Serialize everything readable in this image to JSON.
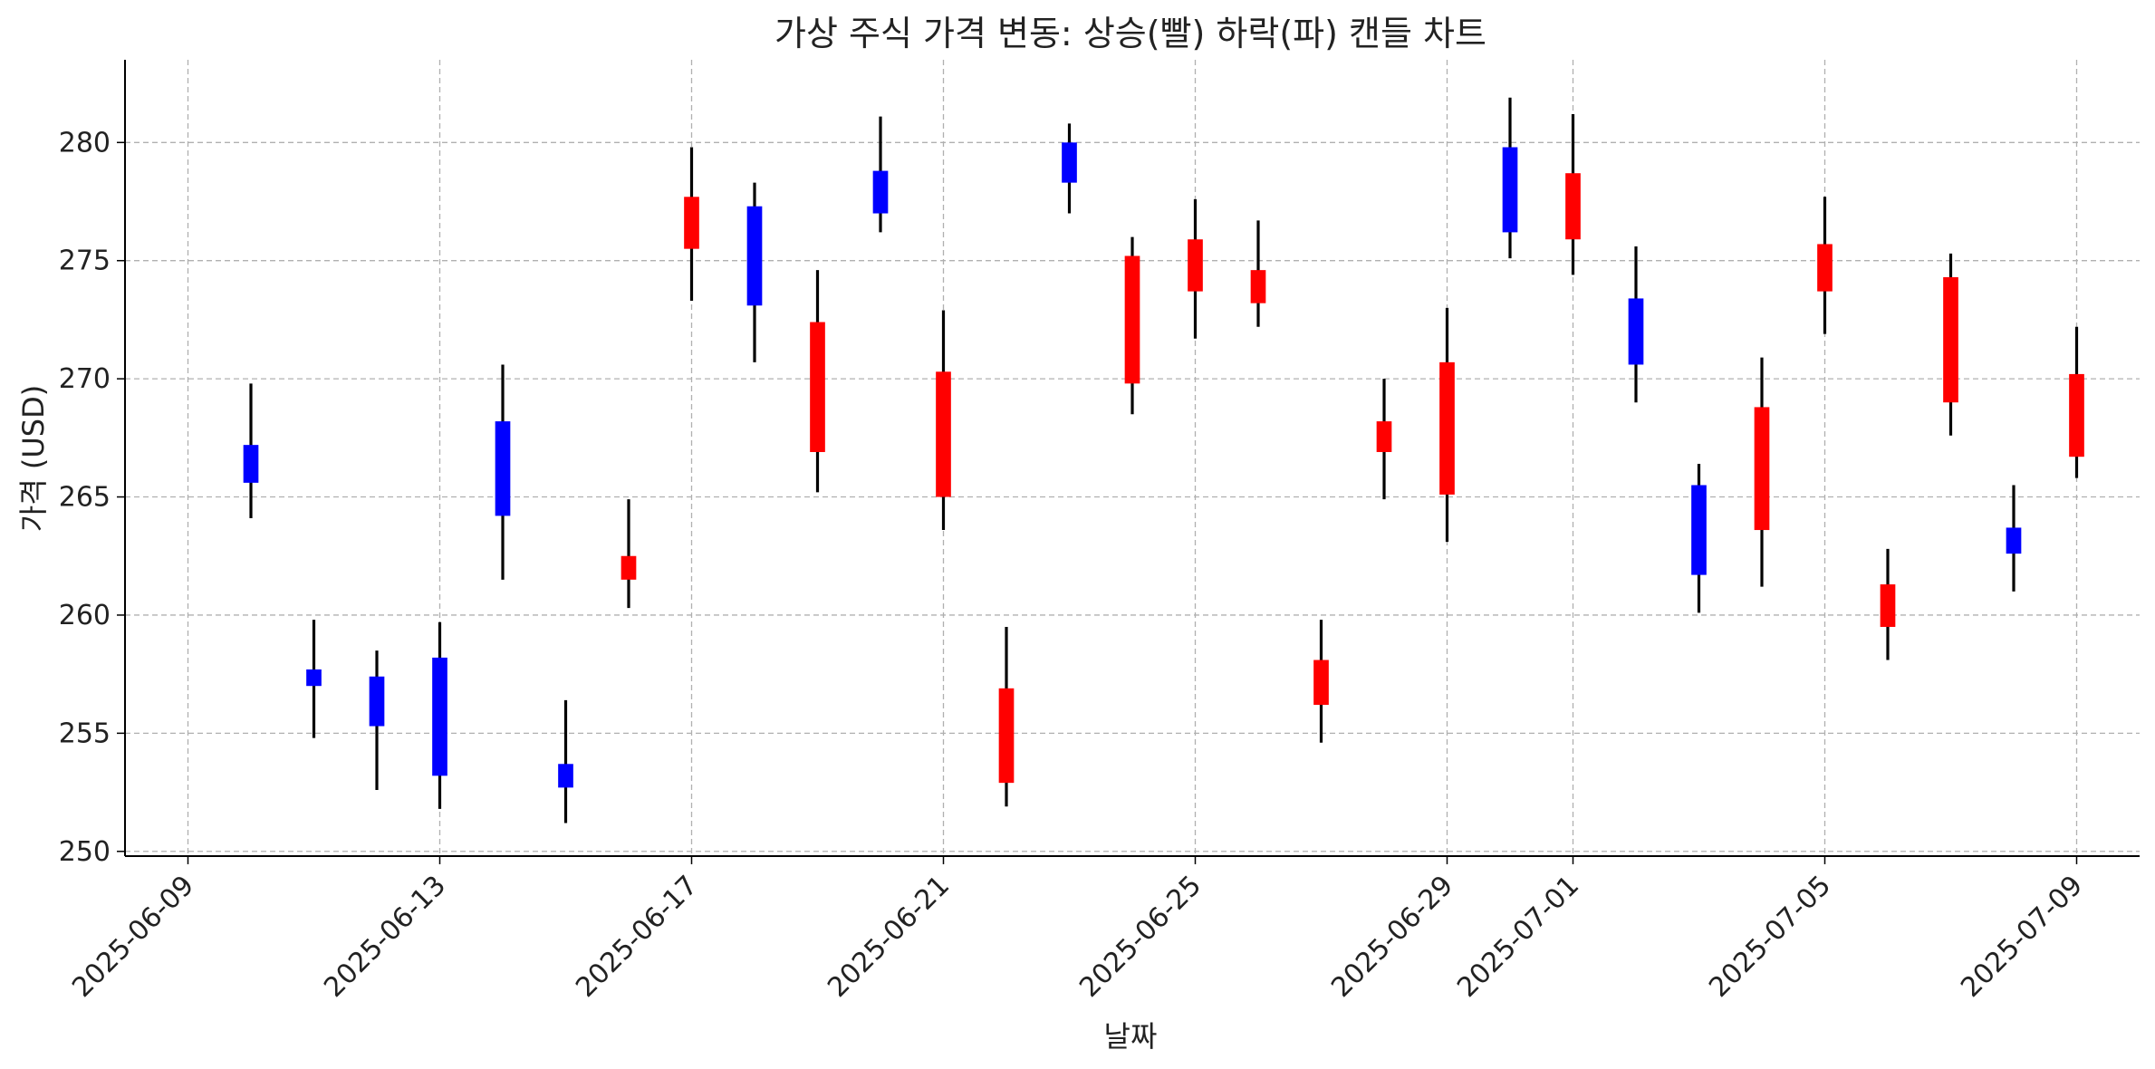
{
  "chart_data": {
    "type": "candlestick",
    "title": "가상 주식 가격 변동: 상승(빨) 하락(파) 캔들 차트",
    "xlabel": "날짜",
    "ylabel": "가격 (USD)",
    "ylim": [
      249.8,
      283.5
    ],
    "xlim": [
      "2025-06-08",
      "2025-07-10"
    ],
    "y_ticks": [
      250,
      255,
      260,
      265,
      270,
      275,
      280
    ],
    "x_ticks": [
      "2025-06-09",
      "2025-06-13",
      "2025-06-17",
      "2025-06-21",
      "2025-06-25",
      "2025-06-29",
      "2025-07-01",
      "2025-07-05",
      "2025-07-09"
    ],
    "grid": true,
    "colors": {
      "up": "#ff0000",
      "down": "#0000ff",
      "wick": "#000000",
      "grid": "#b0b0b0"
    },
    "candles": [
      {
        "date": "2025-06-10",
        "open": 267.2,
        "high": 269.8,
        "low": 264.1,
        "close": 265.6
      },
      {
        "date": "2025-06-11",
        "open": 257.7,
        "high": 259.8,
        "low": 254.8,
        "close": 257.0
      },
      {
        "date": "2025-06-12",
        "open": 257.4,
        "high": 258.5,
        "low": 252.6,
        "close": 255.3
      },
      {
        "date": "2025-06-13",
        "open": 258.2,
        "high": 259.7,
        "low": 251.8,
        "close": 253.2
      },
      {
        "date": "2025-06-14",
        "open": 268.2,
        "high": 270.6,
        "low": 261.5,
        "close": 264.2
      },
      {
        "date": "2025-06-15",
        "open": 253.7,
        "high": 256.4,
        "low": 251.2,
        "close": 252.7
      },
      {
        "date": "2025-06-16",
        "open": 261.5,
        "high": 264.9,
        "low": 260.3,
        "close": 262.5
      },
      {
        "date": "2025-06-17",
        "open": 275.5,
        "high": 279.8,
        "low": 273.3,
        "close": 277.7
      },
      {
        "date": "2025-06-18",
        "open": 277.3,
        "high": 278.3,
        "low": 270.7,
        "close": 273.1
      },
      {
        "date": "2025-06-19",
        "open": 266.9,
        "high": 274.6,
        "low": 265.2,
        "close": 272.4
      },
      {
        "date": "2025-06-20",
        "open": 278.8,
        "high": 281.1,
        "low": 276.2,
        "close": 277.0
      },
      {
        "date": "2025-06-21",
        "open": 265.0,
        "high": 272.9,
        "low": 263.6,
        "close": 270.3
      },
      {
        "date": "2025-06-22",
        "open": 252.9,
        "high": 259.5,
        "low": 251.9,
        "close": 256.9
      },
      {
        "date": "2025-06-23",
        "open": 280.0,
        "high": 280.8,
        "low": 277.0,
        "close": 278.3
      },
      {
        "date": "2025-06-24",
        "open": 269.8,
        "high": 276.0,
        "low": 268.5,
        "close": 275.2
      },
      {
        "date": "2025-06-25",
        "open": 273.7,
        "high": 277.6,
        "low": 271.7,
        "close": 275.9
      },
      {
        "date": "2025-06-26",
        "open": 273.2,
        "high": 276.7,
        "low": 272.2,
        "close": 274.6
      },
      {
        "date": "2025-06-27",
        "open": 256.2,
        "high": 259.8,
        "low": 254.6,
        "close": 258.1
      },
      {
        "date": "2025-06-28",
        "open": 266.9,
        "high": 270.0,
        "low": 264.9,
        "close": 268.2
      },
      {
        "date": "2025-06-29",
        "open": 265.1,
        "high": 273.0,
        "low": 263.1,
        "close": 270.7
      },
      {
        "date": "2025-06-30",
        "open": 279.8,
        "high": 281.9,
        "low": 275.1,
        "close": 276.2
      },
      {
        "date": "2025-07-01",
        "open": 275.9,
        "high": 281.2,
        "low": 274.4,
        "close": 278.7
      },
      {
        "date": "2025-07-02",
        "open": 273.4,
        "high": 275.6,
        "low": 269.0,
        "close": 270.6
      },
      {
        "date": "2025-07-03",
        "open": 265.5,
        "high": 266.4,
        "low": 260.1,
        "close": 261.7
      },
      {
        "date": "2025-07-04",
        "open": 263.6,
        "high": 270.9,
        "low": 261.2,
        "close": 268.8
      },
      {
        "date": "2025-07-05",
        "open": 273.7,
        "high": 277.7,
        "low": 271.9,
        "close": 275.7
      },
      {
        "date": "2025-07-06",
        "open": 259.5,
        "high": 262.8,
        "low": 258.1,
        "close": 261.3
      },
      {
        "date": "2025-07-07",
        "open": 269.0,
        "high": 275.3,
        "low": 267.6,
        "close": 274.3
      },
      {
        "date": "2025-07-08",
        "open": 263.7,
        "high": 265.5,
        "low": 261.0,
        "close": 262.6
      },
      {
        "date": "2025-07-09",
        "open": 266.7,
        "high": 272.2,
        "low": 265.8,
        "close": 270.2
      }
    ]
  }
}
